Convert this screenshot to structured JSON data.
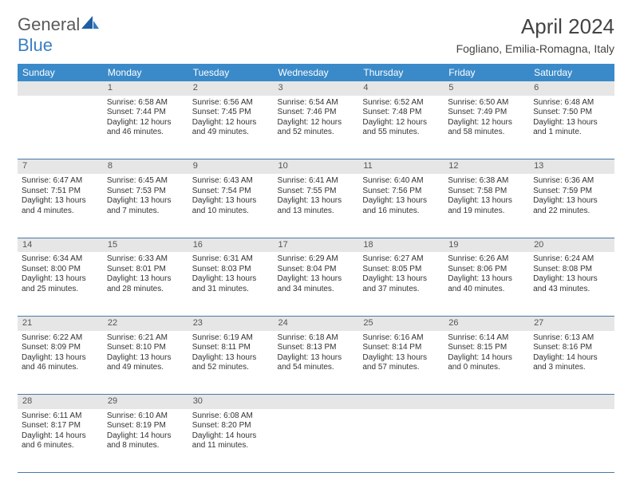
{
  "logo": {
    "word1": "General",
    "word2": "Blue"
  },
  "title": "April 2024",
  "location": "Fogliano, Emilia-Romagna, Italy",
  "headers": [
    "Sunday",
    "Monday",
    "Tuesday",
    "Wednesday",
    "Thursday",
    "Friday",
    "Saturday"
  ],
  "header_bg": "#3a8ac9",
  "header_fg": "#ffffff",
  "daynum_bg": "#e6e6e6",
  "row_border": "#4a78a8",
  "weeks": [
    {
      "nums": [
        "",
        "1",
        "2",
        "3",
        "4",
        "5",
        "6"
      ],
      "cells": [
        null,
        {
          "sunrise": "Sunrise: 6:58 AM",
          "sunset": "Sunset: 7:44 PM",
          "daylight": "Daylight: 12 hours and 46 minutes."
        },
        {
          "sunrise": "Sunrise: 6:56 AM",
          "sunset": "Sunset: 7:45 PM",
          "daylight": "Daylight: 12 hours and 49 minutes."
        },
        {
          "sunrise": "Sunrise: 6:54 AM",
          "sunset": "Sunset: 7:46 PM",
          "daylight": "Daylight: 12 hours and 52 minutes."
        },
        {
          "sunrise": "Sunrise: 6:52 AM",
          "sunset": "Sunset: 7:48 PM",
          "daylight": "Daylight: 12 hours and 55 minutes."
        },
        {
          "sunrise": "Sunrise: 6:50 AM",
          "sunset": "Sunset: 7:49 PM",
          "daylight": "Daylight: 12 hours and 58 minutes."
        },
        {
          "sunrise": "Sunrise: 6:48 AM",
          "sunset": "Sunset: 7:50 PM",
          "daylight": "Daylight: 13 hours and 1 minute."
        }
      ]
    },
    {
      "nums": [
        "7",
        "8",
        "9",
        "10",
        "11",
        "12",
        "13"
      ],
      "cells": [
        {
          "sunrise": "Sunrise: 6:47 AM",
          "sunset": "Sunset: 7:51 PM",
          "daylight": "Daylight: 13 hours and 4 minutes."
        },
        {
          "sunrise": "Sunrise: 6:45 AM",
          "sunset": "Sunset: 7:53 PM",
          "daylight": "Daylight: 13 hours and 7 minutes."
        },
        {
          "sunrise": "Sunrise: 6:43 AM",
          "sunset": "Sunset: 7:54 PM",
          "daylight": "Daylight: 13 hours and 10 minutes."
        },
        {
          "sunrise": "Sunrise: 6:41 AM",
          "sunset": "Sunset: 7:55 PM",
          "daylight": "Daylight: 13 hours and 13 minutes."
        },
        {
          "sunrise": "Sunrise: 6:40 AM",
          "sunset": "Sunset: 7:56 PM",
          "daylight": "Daylight: 13 hours and 16 minutes."
        },
        {
          "sunrise": "Sunrise: 6:38 AM",
          "sunset": "Sunset: 7:58 PM",
          "daylight": "Daylight: 13 hours and 19 minutes."
        },
        {
          "sunrise": "Sunrise: 6:36 AM",
          "sunset": "Sunset: 7:59 PM",
          "daylight": "Daylight: 13 hours and 22 minutes."
        }
      ]
    },
    {
      "nums": [
        "14",
        "15",
        "16",
        "17",
        "18",
        "19",
        "20"
      ],
      "cells": [
        {
          "sunrise": "Sunrise: 6:34 AM",
          "sunset": "Sunset: 8:00 PM",
          "daylight": "Daylight: 13 hours and 25 minutes."
        },
        {
          "sunrise": "Sunrise: 6:33 AM",
          "sunset": "Sunset: 8:01 PM",
          "daylight": "Daylight: 13 hours and 28 minutes."
        },
        {
          "sunrise": "Sunrise: 6:31 AM",
          "sunset": "Sunset: 8:03 PM",
          "daylight": "Daylight: 13 hours and 31 minutes."
        },
        {
          "sunrise": "Sunrise: 6:29 AM",
          "sunset": "Sunset: 8:04 PM",
          "daylight": "Daylight: 13 hours and 34 minutes."
        },
        {
          "sunrise": "Sunrise: 6:27 AM",
          "sunset": "Sunset: 8:05 PM",
          "daylight": "Daylight: 13 hours and 37 minutes."
        },
        {
          "sunrise": "Sunrise: 6:26 AM",
          "sunset": "Sunset: 8:06 PM",
          "daylight": "Daylight: 13 hours and 40 minutes."
        },
        {
          "sunrise": "Sunrise: 6:24 AM",
          "sunset": "Sunset: 8:08 PM",
          "daylight": "Daylight: 13 hours and 43 minutes."
        }
      ]
    },
    {
      "nums": [
        "21",
        "22",
        "23",
        "24",
        "25",
        "26",
        "27"
      ],
      "cells": [
        {
          "sunrise": "Sunrise: 6:22 AM",
          "sunset": "Sunset: 8:09 PM",
          "daylight": "Daylight: 13 hours and 46 minutes."
        },
        {
          "sunrise": "Sunrise: 6:21 AM",
          "sunset": "Sunset: 8:10 PM",
          "daylight": "Daylight: 13 hours and 49 minutes."
        },
        {
          "sunrise": "Sunrise: 6:19 AM",
          "sunset": "Sunset: 8:11 PM",
          "daylight": "Daylight: 13 hours and 52 minutes."
        },
        {
          "sunrise": "Sunrise: 6:18 AM",
          "sunset": "Sunset: 8:13 PM",
          "daylight": "Daylight: 13 hours and 54 minutes."
        },
        {
          "sunrise": "Sunrise: 6:16 AM",
          "sunset": "Sunset: 8:14 PM",
          "daylight": "Daylight: 13 hours and 57 minutes."
        },
        {
          "sunrise": "Sunrise: 6:14 AM",
          "sunset": "Sunset: 8:15 PM",
          "daylight": "Daylight: 14 hours and 0 minutes."
        },
        {
          "sunrise": "Sunrise: 6:13 AM",
          "sunset": "Sunset: 8:16 PM",
          "daylight": "Daylight: 14 hours and 3 minutes."
        }
      ]
    },
    {
      "nums": [
        "28",
        "29",
        "30",
        "",
        "",
        "",
        ""
      ],
      "cells": [
        {
          "sunrise": "Sunrise: 6:11 AM",
          "sunset": "Sunset: 8:17 PM",
          "daylight": "Daylight: 14 hours and 6 minutes."
        },
        {
          "sunrise": "Sunrise: 6:10 AM",
          "sunset": "Sunset: 8:19 PM",
          "daylight": "Daylight: 14 hours and 8 minutes."
        },
        {
          "sunrise": "Sunrise: 6:08 AM",
          "sunset": "Sunset: 8:20 PM",
          "daylight": "Daylight: 14 hours and 11 minutes."
        },
        null,
        null,
        null,
        null
      ]
    }
  ]
}
